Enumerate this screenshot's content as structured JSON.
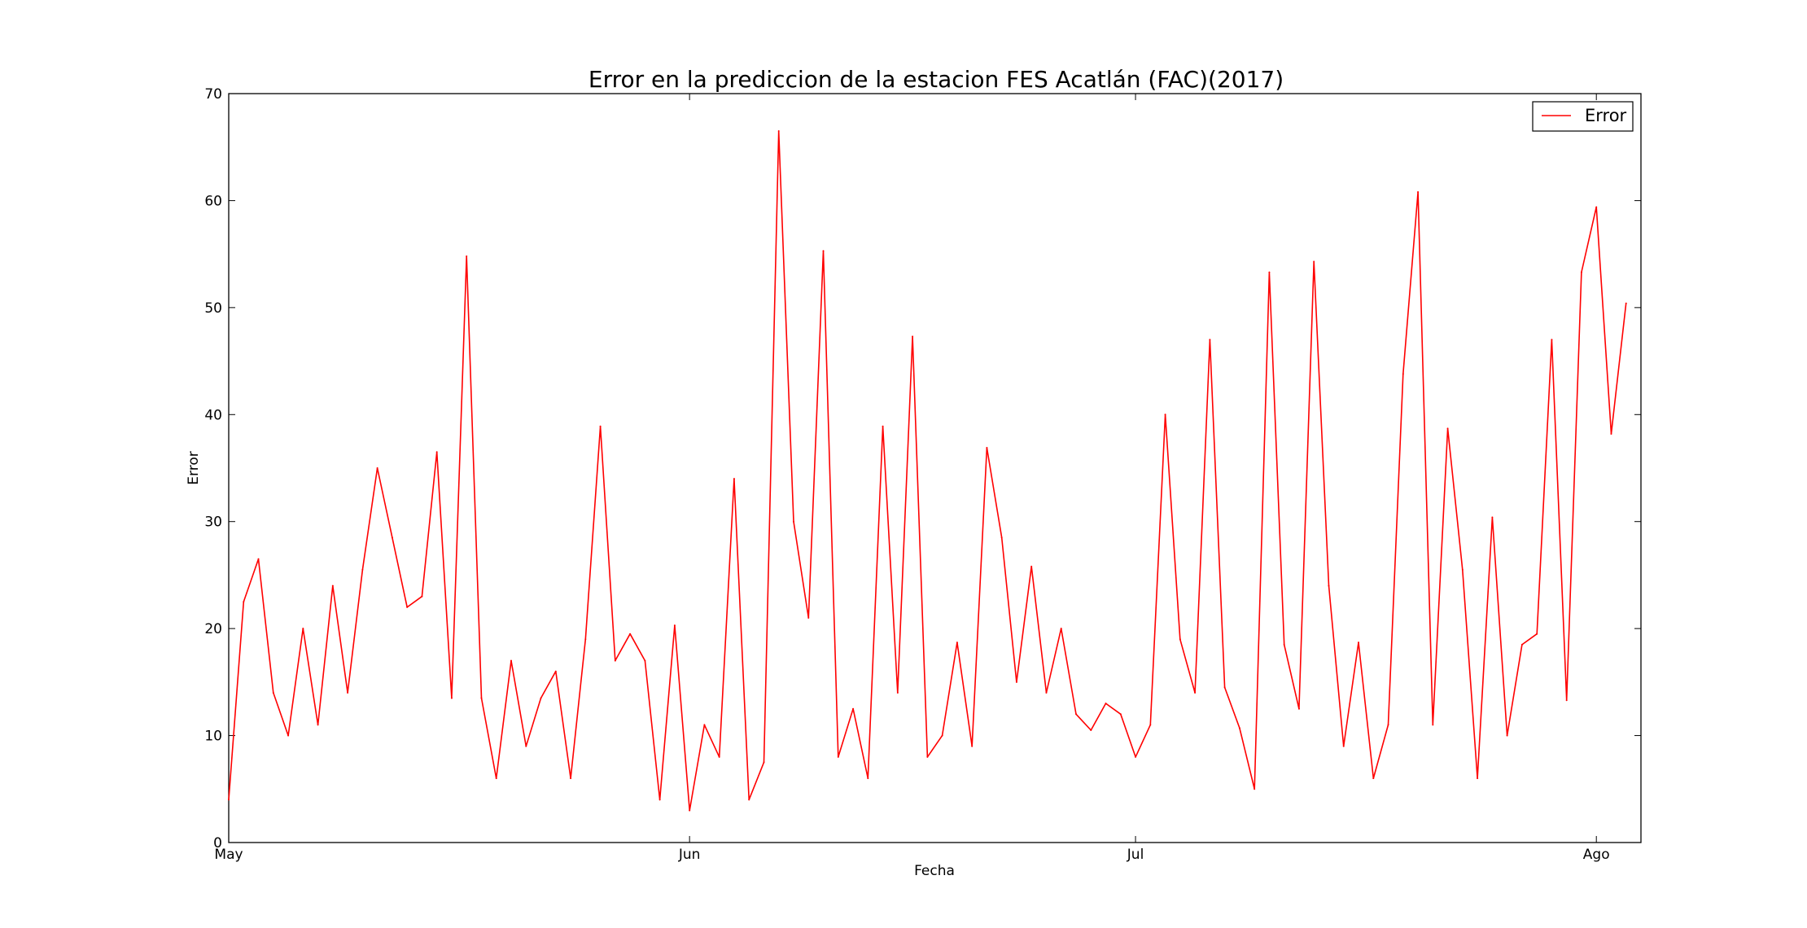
{
  "chart_data": {
    "type": "line",
    "title": "Error en la prediccion de la estacion FES Acatlán (FAC)(2017)",
    "xlabel": "Fecha",
    "ylabel": "Error",
    "ylim": [
      0,
      70
    ],
    "yticks": [
      0,
      10,
      20,
      30,
      40,
      50,
      60,
      70
    ],
    "xlim": [
      "2017-05-01",
      "2017-08-04"
    ],
    "xticks": [
      {
        "date": "2017-05-01",
        "label": "May"
      },
      {
        "date": "2017-06-01",
        "label": "Jun"
      },
      {
        "date": "2017-07-01",
        "label": "Jul"
      },
      {
        "date": "2017-08-01",
        "label": "Ago"
      }
    ],
    "grid": false,
    "legend": {
      "position": "top-right"
    },
    "series": [
      {
        "name": "Error",
        "color": "#ff0000",
        "x": [
          "2017-05-01",
          "2017-05-02",
          "2017-05-03",
          "2017-05-04",
          "2017-05-05",
          "2017-05-06",
          "2017-05-07",
          "2017-05-08",
          "2017-05-09",
          "2017-05-10",
          "2017-05-11",
          "2017-05-12",
          "2017-05-13",
          "2017-05-14",
          "2017-05-15",
          "2017-05-16",
          "2017-05-17",
          "2017-05-18",
          "2017-05-19",
          "2017-05-20",
          "2017-05-21",
          "2017-05-22",
          "2017-05-23",
          "2017-05-24",
          "2017-05-25",
          "2017-05-26",
          "2017-05-27",
          "2017-05-28",
          "2017-05-29",
          "2017-05-30",
          "2017-05-31",
          "2017-06-01",
          "2017-06-02",
          "2017-06-03",
          "2017-06-04",
          "2017-06-05",
          "2017-06-06",
          "2017-06-07",
          "2017-06-08",
          "2017-06-09",
          "2017-06-10",
          "2017-06-11",
          "2017-06-12",
          "2017-06-13",
          "2017-06-14",
          "2017-06-15",
          "2017-06-16",
          "2017-06-17",
          "2017-06-18",
          "2017-06-19",
          "2017-06-20",
          "2017-06-21",
          "2017-06-22",
          "2017-06-23",
          "2017-06-24",
          "2017-06-25",
          "2017-06-26",
          "2017-06-27",
          "2017-06-28",
          "2017-06-29",
          "2017-06-30",
          "2017-07-01",
          "2017-07-02",
          "2017-07-03",
          "2017-07-04",
          "2017-07-05",
          "2017-07-06",
          "2017-07-07",
          "2017-07-08",
          "2017-07-09",
          "2017-07-10",
          "2017-07-11",
          "2017-07-12",
          "2017-07-13",
          "2017-07-14",
          "2017-07-15",
          "2017-07-16",
          "2017-07-17",
          "2017-07-18",
          "2017-07-19",
          "2017-07-20",
          "2017-07-21",
          "2017-07-22",
          "2017-07-23",
          "2017-07-24",
          "2017-07-25",
          "2017-07-26",
          "2017-07-27",
          "2017-07-28",
          "2017-07-29",
          "2017-07-30",
          "2017-07-31",
          "2017-08-01",
          "2017-08-02",
          "2017-08-03"
        ],
        "values": [
          4,
          22.5,
          26.5,
          14,
          10,
          20,
          11,
          24,
          14,
          25.5,
          35,
          28.5,
          22,
          23,
          36.5,
          13.5,
          54.8,
          13.5,
          6,
          17,
          9,
          13.5,
          16,
          6,
          19,
          38.9,
          17,
          19.5,
          17,
          4,
          20.3,
          3,
          11,
          8,
          34,
          4,
          7.5,
          66.5,
          30,
          21,
          55.3,
          8,
          12.5,
          6,
          38.9,
          14,
          47.3,
          8,
          10,
          18.7,
          9,
          36.9,
          28.5,
          15,
          25.8,
          14,
          20,
          12,
          10.5,
          13,
          12,
          8,
          11,
          40,
          19,
          14,
          47,
          14.5,
          10.7,
          5,
          53.3,
          18.5,
          12.5,
          54.3,
          24,
          9,
          18.7,
          6,
          11,
          43.8,
          60.8,
          11,
          38.7,
          25.5,
          6,
          30.4,
          10,
          18.5,
          19.5,
          47,
          13.3,
          53.3,
          59.4,
          38.2,
          50.4
        ]
      }
    ]
  }
}
